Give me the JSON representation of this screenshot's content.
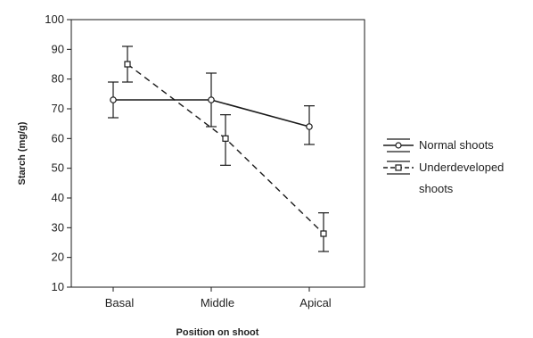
{
  "chart_data": {
    "type": "line",
    "xlabel": "Position on shoot",
    "ylabel": "Starch (mg/g)",
    "categories": [
      "Basal",
      "Middle",
      "Apical"
    ],
    "ylim": [
      10,
      100
    ],
    "yticks": [
      10,
      20,
      30,
      40,
      50,
      60,
      70,
      80,
      90,
      100
    ],
    "grid": false,
    "legend_position": "right",
    "series": [
      {
        "name": "Normal shoots",
        "line_style": "solid",
        "marker": "circle",
        "color": "#1a1a1a",
        "values": [
          73,
          73,
          64
        ],
        "error_low": [
          67,
          64,
          58
        ],
        "error_high": [
          79,
          82,
          71
        ]
      },
      {
        "name": "Underdeveloped shoots",
        "line_style": "dashed",
        "marker": "square",
        "color": "#1a1a1a",
        "values": [
          85,
          60,
          28
        ],
        "error_low": [
          79,
          51,
          22
        ],
        "error_high": [
          91,
          68,
          35
        ]
      }
    ]
  }
}
